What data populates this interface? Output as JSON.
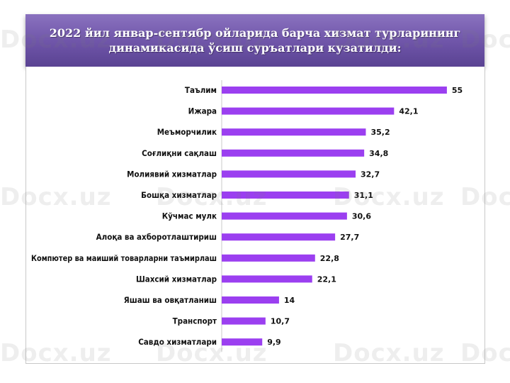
{
  "header": {
    "title": "2022 йил январ-сентябр ойларида барча хизмат турларининг динамикасида ўсиш суръатлари кузатилди:"
  },
  "watermark": {
    "text": "Docx.uz"
  },
  "colors": {
    "bar": "#9b3ff0",
    "banner": "#6e54a8",
    "axis": "#c8c8c8"
  },
  "chart_data": {
    "type": "bar",
    "orientation": "horizontal",
    "categories": [
      "Таълим",
      "Ижара",
      "Меъморчилик",
      "Соғлиқни сақлаш",
      "Молиявий хизматлар",
      "Бошқа хизматлар",
      "Кўчмас мулк",
      "Алоқа ва ахборотлаштириш",
      "Компютер ва маиший товарларни таъмирлаш",
      "Шахсий хизматлар",
      "Яшаш ва овқатланиш",
      "Транспорт",
      "Савдо хизматлари"
    ],
    "values": [
      55,
      42.1,
      35.2,
      34.8,
      32.7,
      31.1,
      30.6,
      27.7,
      22.8,
      22.1,
      14,
      10.7,
      9.9
    ],
    "value_labels": [
      "55",
      "42,1",
      "35,2",
      "34,8",
      "32,7",
      "31,1",
      "30,6",
      "27,7",
      "22,8",
      "22,1",
      "14",
      "10,7",
      "9,9"
    ],
    "xlim": [
      0,
      57
    ],
    "grid": false,
    "legend": "none",
    "xlabel": "",
    "ylabel": ""
  }
}
